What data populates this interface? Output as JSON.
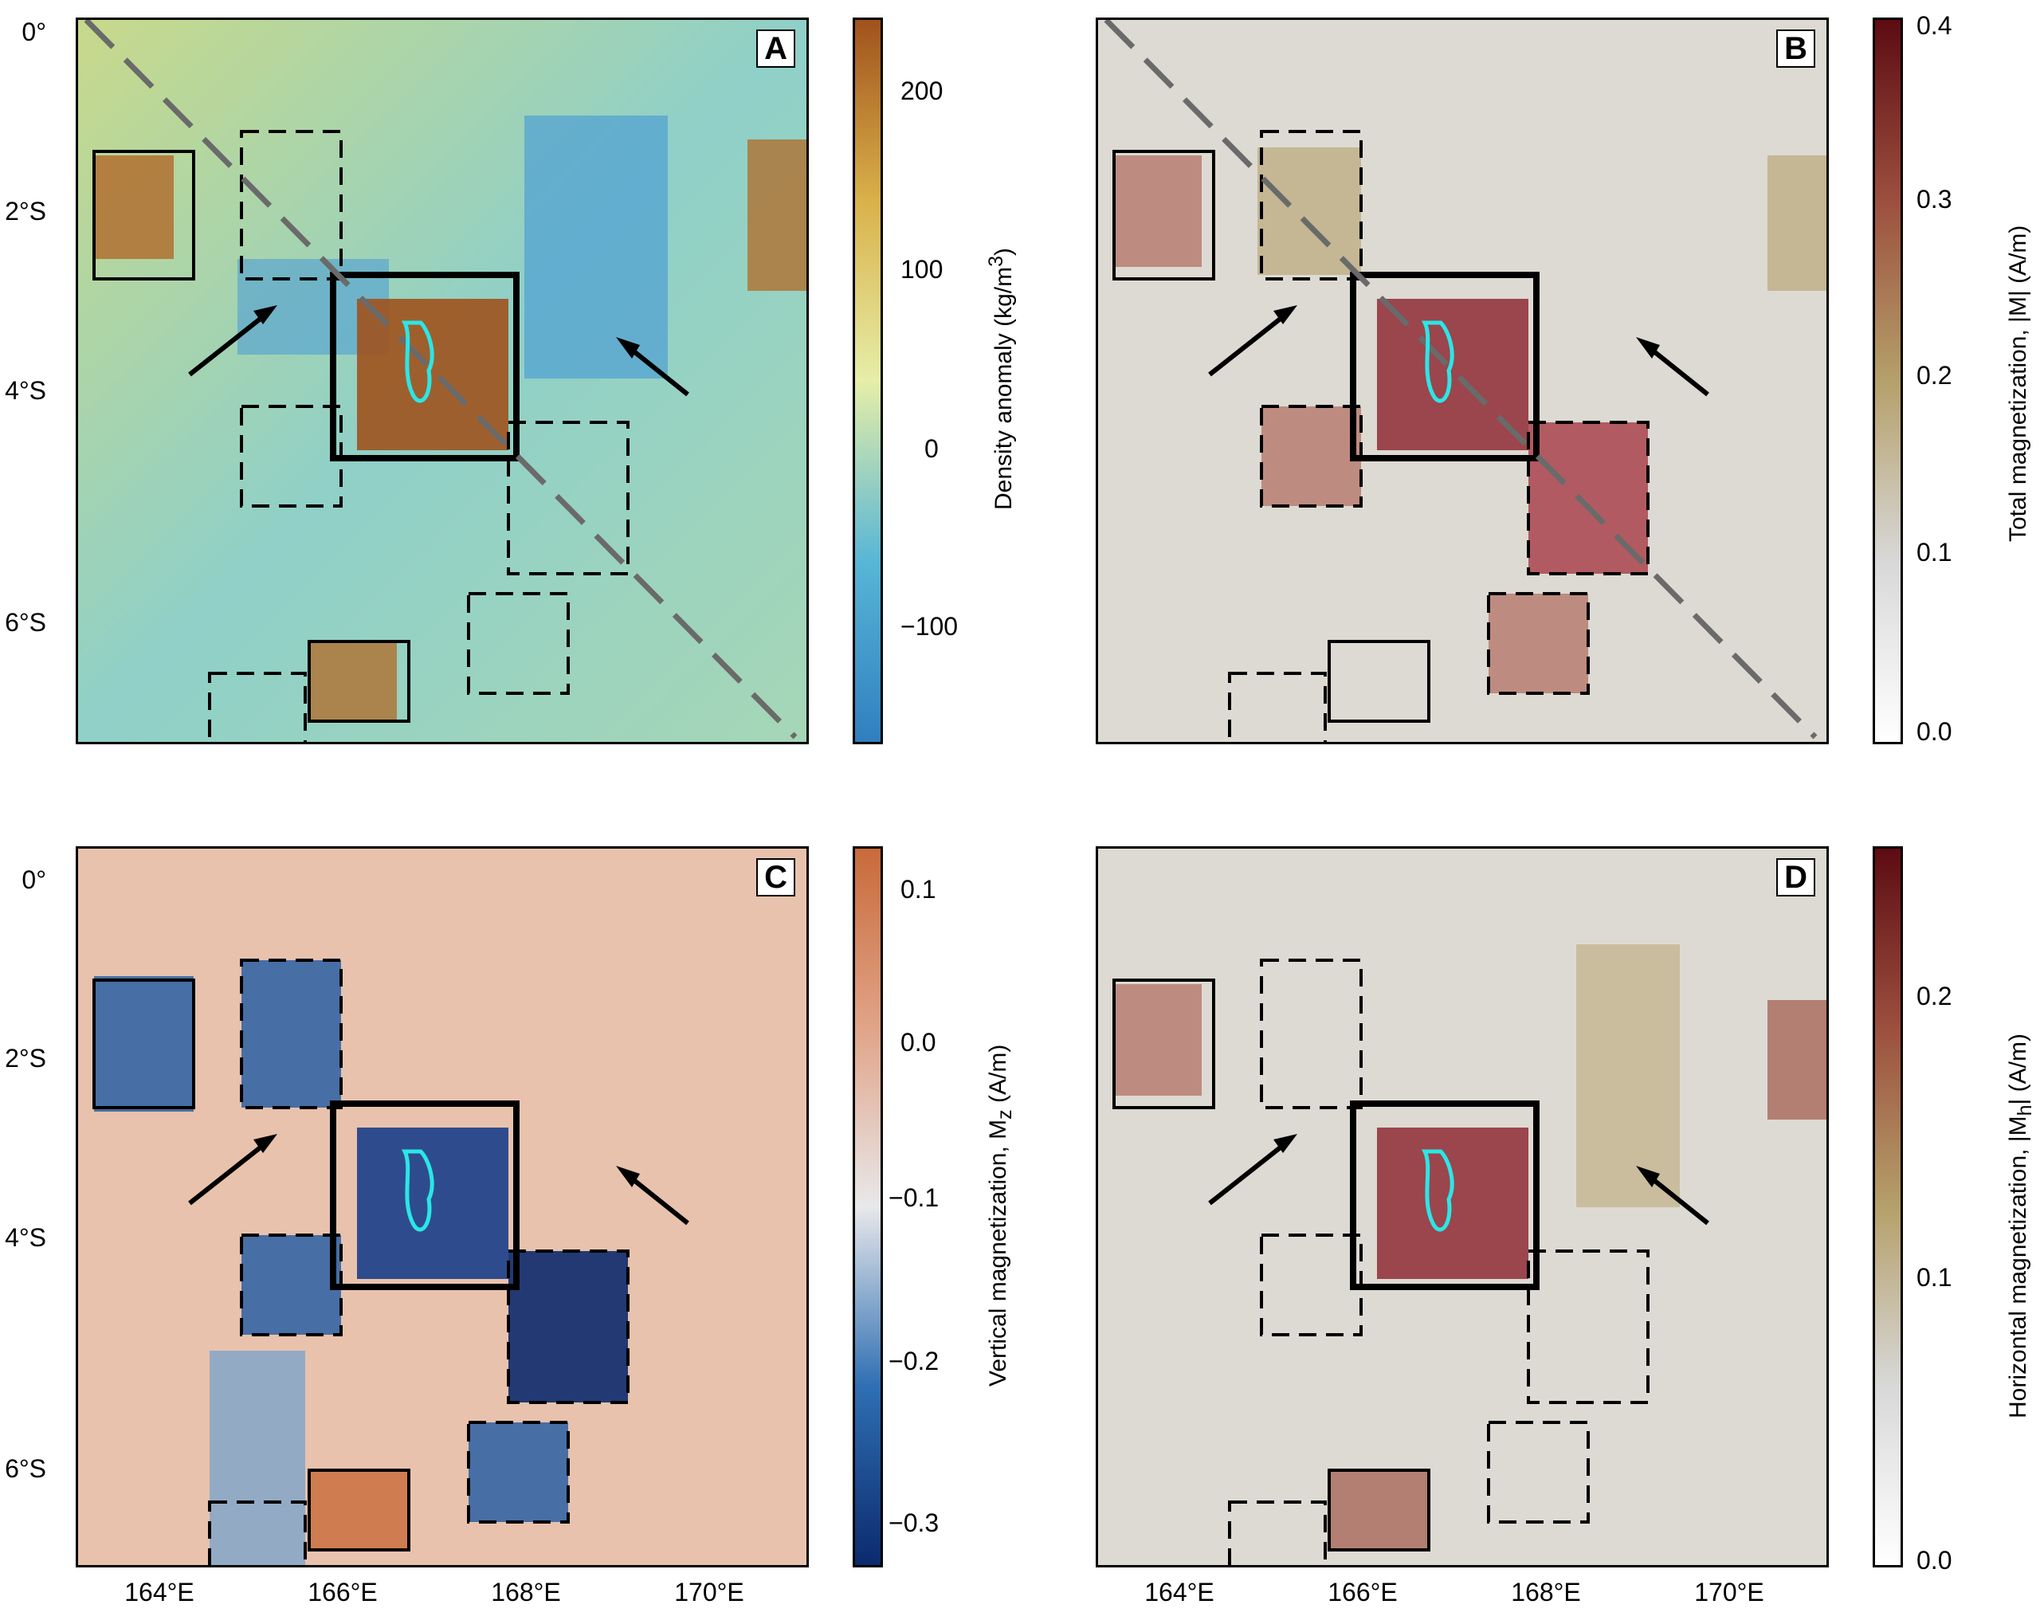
{
  "panels": [
    {
      "id": "A",
      "label": "A",
      "colorbar": {
        "title_main": "Density anomaly (kg/m",
        "title_sup": "3",
        "title_end": ")",
        "ticks": [
          "200",
          "100",
          "0",
          "−100"
        ]
      },
      "colors": [
        "#2f7fbf",
        "#58b6d6",
        "#c8d98a",
        "#d9b14a",
        "#a0521d"
      ]
    },
    {
      "id": "B",
      "label": "B",
      "colorbar": {
        "title_main": "Total magnetization, |M| (A/m)",
        "title_sup": "",
        "title_end": "",
        "ticks": [
          "0.4",
          "0.3",
          "0.2",
          "0.1",
          "0.0"
        ]
      },
      "colors": [
        "#ffffff",
        "#d8d8d8",
        "#b5a06a",
        "#9c4f3e",
        "#5c0c12"
      ]
    },
    {
      "id": "C",
      "label": "C",
      "colorbar": {
        "title_main": "Vertical magnetization, M",
        "title_sup": "z",
        "title_end": " (A/m)",
        "ticks": [
          "0.1",
          "0.0",
          "−0.1",
          "−0.2",
          "−0.3"
        ]
      },
      "colors": [
        "#0c2a6e",
        "#2f6fb3",
        "#e8e8ea",
        "#e0a488",
        "#c96a3a"
      ]
    },
    {
      "id": "D",
      "label": "D",
      "colorbar": {
        "title_main": "Horizontal magnetization, |M",
        "title_sup": "h",
        "title_end": "| (A/m)",
        "ticks": [
          "0.2",
          "0.1",
          "0.0"
        ]
      },
      "colors": [
        "#ffffff",
        "#d8d8d8",
        "#b5a06a",
        "#9c4f3e",
        "#5c0c12"
      ]
    }
  ],
  "axes": {
    "lat_labels": [
      "0°",
      "2°S",
      "4°S",
      "6°S"
    ],
    "lon_labels": [
      "164°E",
      "166°E",
      "168°E",
      "170°E"
    ]
  }
}
